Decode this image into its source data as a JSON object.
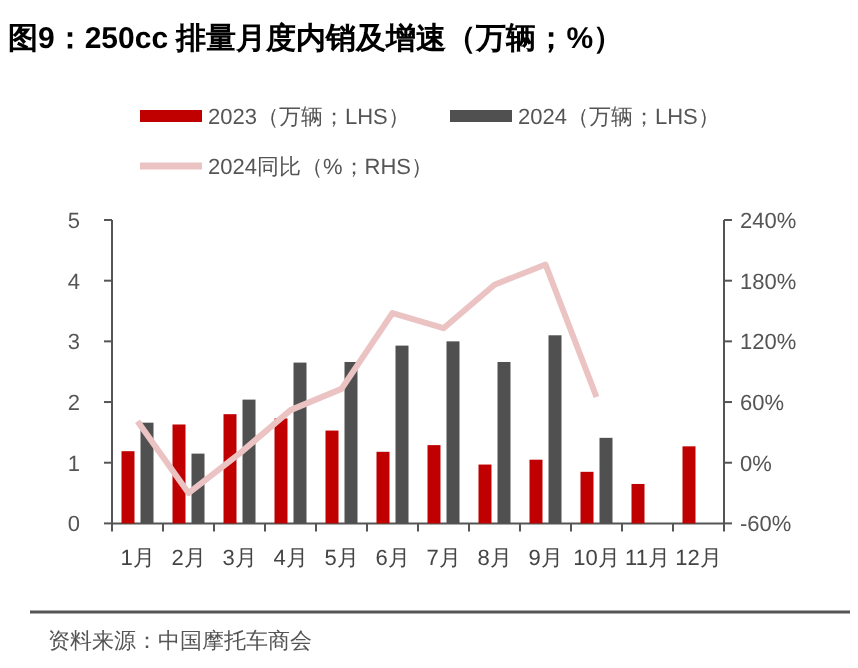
{
  "chart_data": {
    "type": "bar",
    "title": "图9：250cc 排量月度内销及增速（万辆；%）",
    "categories": [
      "1月",
      "2月",
      "3月",
      "4月",
      "5月",
      "6月",
      "7月",
      "8月",
      "9月",
      "10月",
      "11月",
      "12月"
    ],
    "series": [
      {
        "name": "2023（万辆；LHS）",
        "color": "#c00000",
        "values": [
          1.19,
          1.63,
          1.8,
          1.73,
          1.53,
          1.18,
          1.29,
          0.97,
          1.05,
          0.85,
          0.65,
          1.27
        ]
      },
      {
        "name": "2024（万辆；LHS）",
        "color": "#505050",
        "values": [
          1.66,
          1.15,
          2.04,
          2.65,
          2.66,
          2.93,
          3.0,
          2.66,
          3.1,
          1.41,
          null,
          null
        ]
      },
      {
        "name": "2024同比（%；RHS）",
        "color": "#ebc3c3",
        "type": "line",
        "axis": "y2",
        "values": [
          41,
          -30,
          9,
          52,
          73,
          148,
          133,
          176,
          196,
          65,
          null,
          null
        ]
      }
    ],
    "ylim": [
      0,
      5
    ],
    "yticks": [
      0,
      1,
      2,
      3,
      4,
      5
    ],
    "y2lim": [
      -60,
      240
    ],
    "y2ticks": [
      {
        "value": -60,
        "label": "-60%"
      },
      {
        "value": 0,
        "label": "0%"
      },
      {
        "value": 60,
        "label": "60%"
      },
      {
        "value": 120,
        "label": "120%"
      },
      {
        "value": 180,
        "label": "180%"
      },
      {
        "value": 240,
        "label": "240%"
      }
    ],
    "grid": false,
    "legend": "top",
    "annotations": [
      "资料来源：中国摩托车商会"
    ]
  }
}
